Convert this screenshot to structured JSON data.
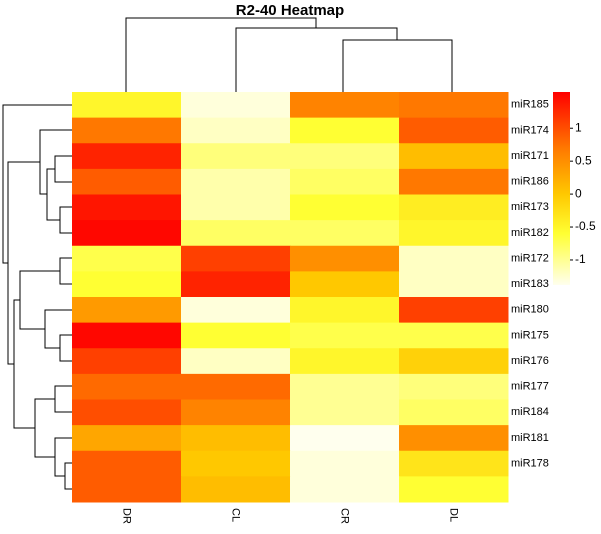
{
  "chart_data": {
    "type": "heatmap",
    "title": "R2-40 Heatmap",
    "x": [
      "DR",
      "CL",
      "CR",
      "DL"
    ],
    "categories": [
      "miR185",
      "miR174",
      "miR171",
      "miR186",
      "miR173",
      "miR182",
      "miR172",
      "miR183",
      "miR180",
      "miR175",
      "miR176",
      "miR177",
      "miR184",
      "miR181",
      "miR178",
      null
    ],
    "z": [
      [
        -0.5,
        -1.3,
        0.6,
        0.7
      ],
      [
        0.7,
        -1.2,
        -0.6,
        0.9
      ],
      [
        1.3,
        -0.9,
        -0.9,
        0.1
      ],
      [
        0.9,
        -1.1,
        -0.8,
        0.7
      ],
      [
        1.4,
        -1.1,
        -0.6,
        -0.4
      ],
      [
        1.5,
        -0.8,
        -0.8,
        -0.5
      ],
      [
        -0.7,
        1.1,
        0.5,
        -1.2
      ],
      [
        -0.6,
        1.3,
        0.0,
        -1.2
      ],
      [
        0.4,
        -1.3,
        -0.5,
        1.1
      ],
      [
        1.5,
        -0.6,
        -0.7,
        -0.7
      ],
      [
        1.1,
        -1.2,
        -0.5,
        -0.1
      ],
      [
        0.8,
        0.8,
        -1.0,
        -0.9
      ],
      [
        1.0,
        0.6,
        -1.0,
        -0.8
      ],
      [
        0.3,
        0.1,
        -1.4,
        0.5
      ],
      [
        0.9,
        0.0,
        -1.3,
        -0.3
      ],
      [
        0.9,
        0.1,
        -1.3,
        -0.6
      ]
    ],
    "clim": [
      -1.38,
      1.55
    ],
    "cticks": [
      1,
      0.5,
      0,
      -0.5,
      -1
    ],
    "colorscale": [
      [
        -1.38,
        "#ffffee"
      ],
      [
        -0.6,
        "#ffff33"
      ],
      [
        0,
        "#ffc800"
      ],
      [
        0.7,
        "#ff7800"
      ],
      [
        1.55,
        "#ff0000"
      ]
    ]
  }
}
